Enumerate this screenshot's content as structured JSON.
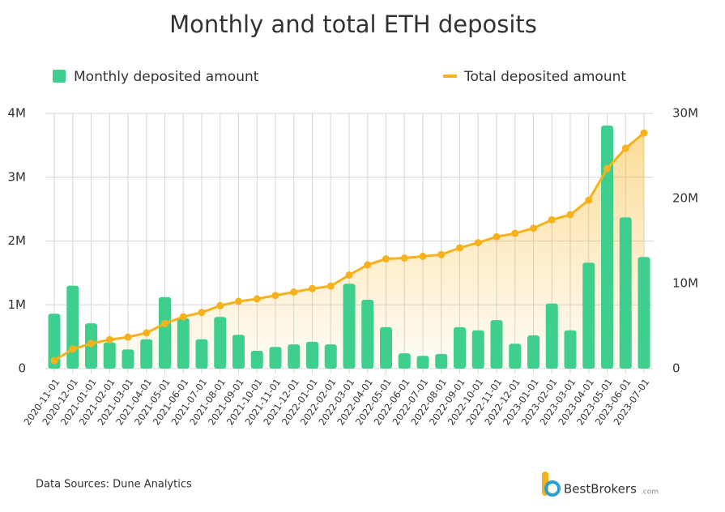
{
  "chart_data": {
    "type": "bar",
    "title": "Monthly and total ETH deposits",
    "categories": [
      "2020-11-01",
      "2020-12-01",
      "2021-01-01",
      "2021-02-01",
      "2021-03-01",
      "2021-04-01",
      "2021-05-01",
      "2021-06-01",
      "2021-07-01",
      "2021-08-01",
      "2021-09-01",
      "2021-10-01",
      "2021-11-01",
      "2021-12-01",
      "2022-01-01",
      "2022-02-01",
      "2022-03-01",
      "2022-04-01",
      "2022-05-01",
      "2022-06-01",
      "2022-07-01",
      "2022-08-01",
      "2022-09-01",
      "2022-10-01",
      "2022-11-01",
      "2022-12-01",
      "2023-01-01",
      "2023-02-01",
      "2023-03-01",
      "2023-04-01",
      "2023-05-01",
      "2023-06-01",
      "2023-07-01"
    ],
    "series": [
      {
        "name": "Monthly deposited amount",
        "type": "bar",
        "color": "#3ecf8e",
        "values": [
          0.86,
          1.3,
          0.71,
          0.41,
          0.3,
          0.46,
          1.12,
          0.79,
          0.46,
          0.81,
          0.53,
          0.28,
          0.34,
          0.38,
          0.42,
          0.38,
          1.33,
          1.08,
          0.65,
          0.24,
          0.2,
          0.23,
          0.65,
          0.6,
          0.76,
          0.39,
          0.52,
          1.02,
          0.6,
          1.66,
          3.81,
          2.37,
          1.75
        ]
      },
      {
        "name": "Total deposited amount",
        "type": "line",
        "axis": "y2",
        "color": "#f7b21b",
        "values": [
          0.95,
          2.3,
          2.95,
          3.4,
          3.7,
          4.2,
          5.3,
          6.1,
          6.6,
          7.4,
          7.9,
          8.2,
          8.6,
          9.0,
          9.4,
          9.7,
          11.0,
          12.2,
          12.9,
          13.0,
          13.2,
          13.4,
          14.2,
          14.8,
          15.5,
          15.9,
          16.5,
          17.5,
          18.1,
          19.8,
          23.5,
          25.9,
          27.7
        ]
      }
    ],
    "ylim": [
      0,
      4
    ],
    "yticks": [
      0,
      {
        "value": 1,
        "label": "1M"
      },
      {
        "value": 2,
        "label": "2M"
      },
      {
        "value": 3,
        "label": "3M"
      },
      {
        "value": 4,
        "label": "4M"
      }
    ],
    "y2lim": [
      0,
      30
    ],
    "y2ticks": [
      0,
      {
        "value": 10,
        "label": "10M"
      },
      {
        "value": 20,
        "label": "20M"
      },
      {
        "value": 30,
        "label": "30M"
      }
    ],
    "grid": true,
    "source": "Data Sources: Dune Analytics",
    "brand": "BestBrokers",
    "brand_suffix": ".com"
  }
}
